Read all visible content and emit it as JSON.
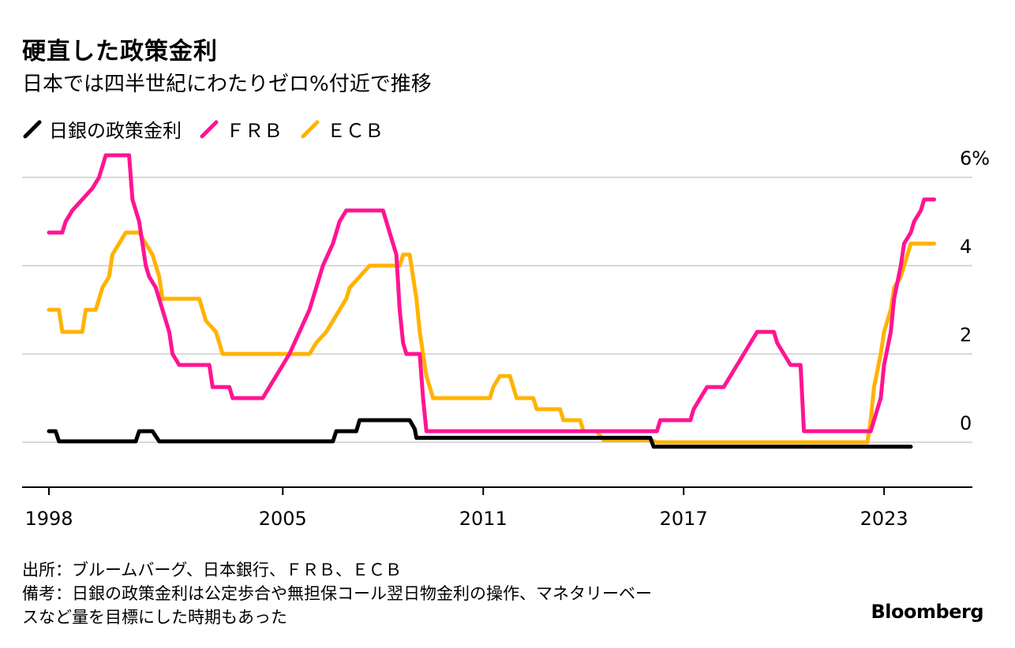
{
  "header": {
    "title": "硬直した政策金利",
    "subtitle": "日本では四半世紀にわたりゼロ%付近で推移"
  },
  "legend": [
    {
      "label": "日銀の政策金利",
      "color": "#000000"
    },
    {
      "label": "ＦＲＢ",
      "color": "#ff1493"
    },
    {
      "label": "ＥＣＢ",
      "color": "#ffb300"
    }
  ],
  "footer": {
    "source": "出所：ブルームバーグ、日本銀行、ＦＲＢ、ＥＣＢ",
    "note_line1": "備考：日銀の政策金利は公定歩合や無担保コール翌日物金利の操作、マネタリーベー",
    "note_line2": "スなど量を目標にした時期もあった",
    "brand": "Bloomberg"
  },
  "chart_data": {
    "type": "line",
    "xlim": [
      1998,
      2024.5
    ],
    "ylim": [
      -1,
      6
    ],
    "ytick_values": [
      0,
      2,
      4,
      6
    ],
    "ytick_labels": [
      "0",
      "2",
      "4",
      "6%"
    ],
    "xtick_values": [
      1998,
      2005,
      2011,
      2017,
      2023
    ],
    "xtick_labels": [
      "1998",
      "2005",
      "2011",
      "2017",
      "2023"
    ],
    "grid": true,
    "series": [
      {
        "name": "日銀の政策金利",
        "color": "#000000",
        "points": [
          [
            1998.0,
            0.25
          ],
          [
            1998.2,
            0.25
          ],
          [
            1998.3,
            0.02
          ],
          [
            2000.6,
            0.02
          ],
          [
            2000.7,
            0.25
          ],
          [
            2001.1,
            0.25
          ],
          [
            2001.3,
            0.02
          ],
          [
            2006.5,
            0.02
          ],
          [
            2006.6,
            0.25
          ],
          [
            2007.2,
            0.25
          ],
          [
            2007.3,
            0.5
          ],
          [
            2008.8,
            0.5
          ],
          [
            2008.95,
            0.3
          ],
          [
            2009.0,
            0.1
          ],
          [
            2016.0,
            0.1
          ],
          [
            2016.1,
            -0.1
          ],
          [
            2023.8,
            -0.1
          ]
        ]
      },
      {
        "name": "ＦＲＢ",
        "color": "#ff1493",
        "points": [
          [
            1998.0,
            4.75
          ],
          [
            1998.4,
            4.75
          ],
          [
            1998.5,
            5.0
          ],
          [
            1998.7,
            5.25
          ],
          [
            1999.0,
            5.5
          ],
          [
            1999.3,
            5.75
          ],
          [
            1999.5,
            6.0
          ],
          [
            1999.7,
            6.5
          ],
          [
            2000.4,
            6.5
          ],
          [
            2000.5,
            5.5
          ],
          [
            2000.7,
            5.0
          ],
          [
            2000.8,
            4.5
          ],
          [
            2000.9,
            4.0
          ],
          [
            2001.0,
            3.75
          ],
          [
            2001.2,
            3.5
          ],
          [
            2001.4,
            3.0
          ],
          [
            2001.6,
            2.5
          ],
          [
            2001.7,
            2.0
          ],
          [
            2001.9,
            1.75
          ],
          [
            2002.8,
            1.75
          ],
          [
            2002.9,
            1.25
          ],
          [
            2003.4,
            1.25
          ],
          [
            2003.5,
            1.0
          ],
          [
            2004.4,
            1.0
          ],
          [
            2004.6,
            1.25
          ],
          [
            2004.8,
            1.5
          ],
          [
            2005.0,
            1.75
          ],
          [
            2005.2,
            2.0
          ],
          [
            2005.5,
            2.5
          ],
          [
            2005.8,
            3.0
          ],
          [
            2006.0,
            3.5
          ],
          [
            2006.2,
            4.0
          ],
          [
            2006.5,
            4.5
          ],
          [
            2006.7,
            5.0
          ],
          [
            2006.9,
            5.25
          ],
          [
            2008.0,
            5.25
          ],
          [
            2008.2,
            4.75
          ],
          [
            2008.4,
            4.25
          ],
          [
            2008.5,
            3.0
          ],
          [
            2008.6,
            2.25
          ],
          [
            2008.7,
            2.0
          ],
          [
            2009.1,
            2.0
          ],
          [
            2009.2,
            1.0
          ],
          [
            2009.3,
            0.25
          ],
          [
            2016.2,
            0.25
          ],
          [
            2016.3,
            0.5
          ],
          [
            2017.2,
            0.5
          ],
          [
            2017.3,
            0.75
          ],
          [
            2017.5,
            1.0
          ],
          [
            2017.7,
            1.25
          ],
          [
            2018.2,
            1.25
          ],
          [
            2018.4,
            1.5
          ],
          [
            2018.6,
            1.75
          ],
          [
            2018.8,
            2.0
          ],
          [
            2019.0,
            2.25
          ],
          [
            2019.2,
            2.5
          ],
          [
            2019.7,
            2.5
          ],
          [
            2019.8,
            2.25
          ],
          [
            2020.0,
            2.0
          ],
          [
            2020.2,
            1.75
          ],
          [
            2020.5,
            1.75
          ],
          [
            2020.6,
            0.25
          ],
          [
            2022.6,
            0.25
          ],
          [
            2022.7,
            0.5
          ],
          [
            2022.9,
            1.0
          ],
          [
            2023.0,
            1.75
          ],
          [
            2023.2,
            2.5
          ],
          [
            2023.3,
            3.25
          ],
          [
            2023.5,
            4.0
          ],
          [
            2023.6,
            4.5
          ],
          [
            2023.8,
            4.75
          ],
          [
            2023.9,
            5.0
          ],
          [
            2024.1,
            5.25
          ],
          [
            2024.2,
            5.5
          ],
          [
            2024.5,
            5.5
          ]
        ]
      },
      {
        "name": "ＥＣＢ",
        "color": "#ffb300",
        "points": [
          [
            1998.0,
            3.0
          ],
          [
            1998.3,
            3.0
          ],
          [
            1998.4,
            2.5
          ],
          [
            1998.7,
            2.5
          ],
          [
            1999.0,
            2.5
          ],
          [
            1999.1,
            3.0
          ],
          [
            1999.4,
            3.0
          ],
          [
            1999.6,
            3.5
          ],
          [
            1999.8,
            3.75
          ],
          [
            1999.9,
            4.25
          ],
          [
            2000.1,
            4.5
          ],
          [
            2000.3,
            4.75
          ],
          [
            2000.7,
            4.75
          ],
          [
            2000.9,
            4.5
          ],
          [
            2001.1,
            4.25
          ],
          [
            2001.3,
            3.75
          ],
          [
            2001.4,
            3.25
          ],
          [
            2002.5,
            3.25
          ],
          [
            2002.7,
            2.75
          ],
          [
            2003.0,
            2.5
          ],
          [
            2003.2,
            2.0
          ],
          [
            2005.8,
            2.0
          ],
          [
            2006.0,
            2.25
          ],
          [
            2006.3,
            2.5
          ],
          [
            2006.5,
            2.75
          ],
          [
            2006.7,
            3.0
          ],
          [
            2006.9,
            3.25
          ],
          [
            2007.0,
            3.5
          ],
          [
            2007.3,
            3.75
          ],
          [
            2007.6,
            4.0
          ],
          [
            2008.5,
            4.0
          ],
          [
            2008.6,
            4.25
          ],
          [
            2008.8,
            4.25
          ],
          [
            2008.9,
            3.75
          ],
          [
            2009.0,
            3.25
          ],
          [
            2009.1,
            2.5
          ],
          [
            2009.2,
            2.0
          ],
          [
            2009.3,
            1.5
          ],
          [
            2009.5,
            1.0
          ],
          [
            2011.2,
            1.0
          ],
          [
            2011.3,
            1.25
          ],
          [
            2011.5,
            1.5
          ],
          [
            2011.8,
            1.5
          ],
          [
            2011.9,
            1.25
          ],
          [
            2012.0,
            1.0
          ],
          [
            2012.5,
            1.0
          ],
          [
            2012.6,
            0.75
          ],
          [
            2013.3,
            0.75
          ],
          [
            2013.4,
            0.5
          ],
          [
            2013.9,
            0.5
          ],
          [
            2014.0,
            0.25
          ],
          [
            2014.4,
            0.25
          ],
          [
            2014.6,
            0.05
          ],
          [
            2016.0,
            0.05
          ],
          [
            2016.2,
            0.0
          ],
          [
            2022.5,
            0.0
          ],
          [
            2022.6,
            0.5
          ],
          [
            2022.7,
            1.25
          ],
          [
            2022.9,
            2.0
          ],
          [
            2023.0,
            2.5
          ],
          [
            2023.2,
            3.0
          ],
          [
            2023.3,
            3.5
          ],
          [
            2023.5,
            3.75
          ],
          [
            2023.6,
            4.0
          ],
          [
            2023.7,
            4.25
          ],
          [
            2023.8,
            4.5
          ],
          [
            2024.5,
            4.5
          ]
        ]
      }
    ]
  }
}
